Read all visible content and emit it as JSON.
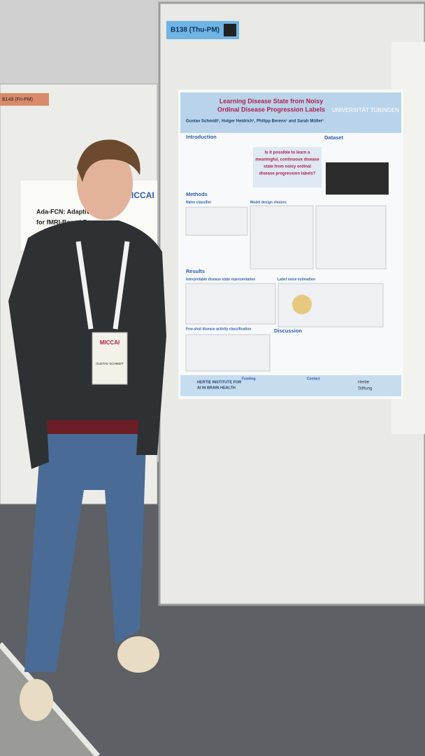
{
  "booth": {
    "label": "B138 (Thu-PM)"
  },
  "neighbor": {
    "label": "B148 (Fri-PM)",
    "conference": "MICCAI",
    "title_lines": [
      "Ada-FCN: Adaptive",
      "for fMRI-Based B"
    ]
  },
  "poster": {
    "title_lines": [
      "Learning Disease State from Noisy",
      "Ordinal Disease Progression Labels"
    ],
    "authors": "Gustav Schmidt¹, Holger Heidrich¹, Philipp Berens¹ and Sarah Müller¹",
    "university": "UNIVERSITÄT TÜBINGEN",
    "question_lines": [
      "Is it possible to learn a",
      "meaningful, continuous disease",
      "state from noisy ordinal",
      "disease progression labels?"
    ],
    "sections": {
      "introduction": "Introduction",
      "dataset": "Dataset",
      "methods": "Methods",
      "naive": "Naive classifier",
      "design": "Model design choices",
      "results": "Results",
      "interpretable": "Interpretable disease state representation",
      "noise": "Label noise estimation",
      "fewshot": "Few-shot disease activity classification",
      "discussion": "Discussion",
      "funding": "Funding",
      "contact": "Contact"
    },
    "institute_lines": [
      "HERTIE INSTITUTE FOR",
      "AI IN BRAIN HEALTH"
    ],
    "foundation_lines": [
      "Hertie",
      "Stiftung"
    ]
  },
  "badge": {
    "event": "MICCAI",
    "name": "GUSTAV SCHMIDT"
  }
}
